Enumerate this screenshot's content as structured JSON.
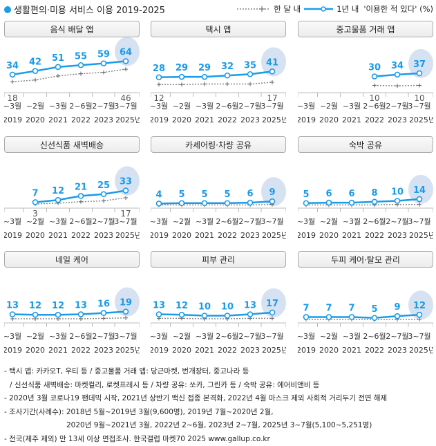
{
  "title": "생활편의·미용 서비스 이용 2019-2025",
  "legend": {
    "monthly": "한 달 내",
    "yearly": "1년 내",
    "note": "'이용한 적 있다' (%)"
  },
  "colors": {
    "yearly": "#1a9be8",
    "monthly": "#888888",
    "highlight": "#d6e2f1"
  },
  "chart_data": [
    {
      "type": "line",
      "title": "음식 배달 앱",
      "months": [
        "~3월",
        "~2월",
        "~3월",
        "2~6월",
        "2~7월",
        "3~7월"
      ],
      "years": [
        "2019",
        "2020",
        "2021",
        "2022",
        "2023",
        "2025년"
      ],
      "yearly": [
        34,
        42,
        51,
        55,
        59,
        64
      ],
      "monthly": [
        18,
        22,
        31,
        36,
        39,
        46
      ],
      "monthly_labeled": [
        0,
        5
      ]
    },
    {
      "type": "line",
      "title": "택시 앱",
      "months": [
        "~3월",
        "~2월",
        "~3월",
        "2~6월",
        "2~7월",
        "3~7월"
      ],
      "years": [
        "2019",
        "2020",
        "2021",
        "2022",
        "2023",
        "2025년"
      ],
      "yearly": [
        28,
        29,
        29,
        32,
        35,
        41
      ],
      "monthly": [
        12,
        12,
        13,
        13,
        13,
        17
      ],
      "monthly_labeled": [
        0,
        5
      ]
    },
    {
      "type": "line",
      "title": "중고물품 거래 앱",
      "months": [
        "~3월",
        "~2월",
        "~3월",
        "2~6월",
        "2~7월",
        "3~7월"
      ],
      "years": [
        "2019",
        "2020",
        "2021",
        "2022",
        "2023",
        "2025년"
      ],
      "yearly": [
        null,
        null,
        null,
        30,
        34,
        37
      ],
      "monthly": [
        null,
        null,
        null,
        10,
        9,
        10
      ],
      "monthly_labeled": [
        3,
        5
      ]
    },
    {
      "type": "line",
      "title": "신선식품 새벽배송",
      "months": [
        "~3월",
        "~2월",
        "~3월",
        "2~6월",
        "2~7월",
        "3~7월"
      ],
      "years": [
        "2019",
        "2020",
        "2021",
        "2022",
        "2023",
        "2025년"
      ],
      "yearly": [
        null,
        7,
        12,
        21,
        25,
        33
      ],
      "monthly": [
        null,
        3,
        5,
        8,
        10,
        17
      ],
      "monthly_labeled": [
        1,
        5
      ]
    },
    {
      "type": "line",
      "title": "카셰어링·차량 공유",
      "months": [
        "~3월",
        "~2월",
        "~3월",
        "2~6월",
        "2~7월",
        "3~7월"
      ],
      "years": [
        "2019",
        "2020",
        "2021",
        "2022",
        "2023",
        "2025년"
      ],
      "yearly": [
        4,
        5,
        5,
        5,
        6,
        9
      ],
      "monthly": [
        1,
        1,
        1,
        1,
        1,
        2
      ],
      "monthly_labeled": []
    },
    {
      "type": "line",
      "title": "숙박 공유",
      "months": [
        "~3월",
        "~2월",
        "~3월",
        "2~6월",
        "2~7월",
        "3~7월"
      ],
      "years": [
        "2019",
        "2020",
        "2021",
        "2022",
        "2023",
        "2025년"
      ],
      "yearly": [
        5,
        6,
        6,
        8,
        10,
        14
      ],
      "monthly": [
        1,
        1,
        1,
        1,
        2,
        2
      ],
      "monthly_labeled": []
    },
    {
      "type": "line",
      "title": "네일 케어",
      "months": [
        "~3월",
        "~2월",
        "~3월",
        "2~6월",
        "2~7월",
        "3~7월"
      ],
      "years": [
        "2019",
        "2020",
        "2021",
        "2022",
        "2023",
        "2025년"
      ],
      "yearly": [
        13,
        12,
        12,
        13,
        16,
        19
      ],
      "monthly": [
        3,
        3,
        3,
        3,
        4,
        5
      ],
      "monthly_labeled": []
    },
    {
      "type": "line",
      "title": "피부 관리",
      "months": [
        "~3월",
        "~2월",
        "~3월",
        "2~6월",
        "2~7월",
        "3~7월"
      ],
      "years": [
        "2019",
        "2020",
        "2021",
        "2022",
        "2023",
        "2025년"
      ],
      "yearly": [
        13,
        12,
        10,
        10,
        13,
        17
      ],
      "monthly": [
        4,
        4,
        3,
        3,
        4,
        4
      ],
      "monthly_labeled": []
    },
    {
      "type": "line",
      "title": "두피 케어·탈모 관리",
      "months": [
        "~3월",
        "~2월",
        "~3월",
        "2~6월",
        "2~7월",
        "3~7월"
      ],
      "years": [
        "2019",
        "2020",
        "2021",
        "2022",
        "2023",
        "2025년"
      ],
      "yearly": [
        7,
        7,
        7,
        5,
        9,
        12
      ],
      "monthly": [
        2,
        2,
        2,
        1,
        2,
        2
      ],
      "monthly_labeled": []
    }
  ],
  "footer": [
    "- 택시 앱: 카카오T, 우티 등 / 중고물품 거래 앱: 당근마켓, 번개장터, 중고나라 등",
    "/ 신선식품 새벽배송: 마켓컬리, 로켓프레시 등 / 차량 공유: 쏘카, 그린카 등 / 숙박 공유: 에어비앤비 등",
    "- 2020년 3월 코로나19 팬데믹 시작, 2021년 상반기 백신 접종 본격화, 2022년 4월 마스크 제외 사회적 거리두기 전면 해제",
    "- 조사기간(사례수):  2018년 5월~2019년 3월(9,600명), 2019년 7월~2020년 2월,",
    "2020년 9월~2021년 3월, 2022년 2~6월, 2023년 2~7월, 2025년 3~7월(5,100~5,251명)",
    "- 전국(제주 제외) 만 13세 이상 면접조사. 한국갤럽 마켓70 2025 www.gallup.co.kr"
  ]
}
